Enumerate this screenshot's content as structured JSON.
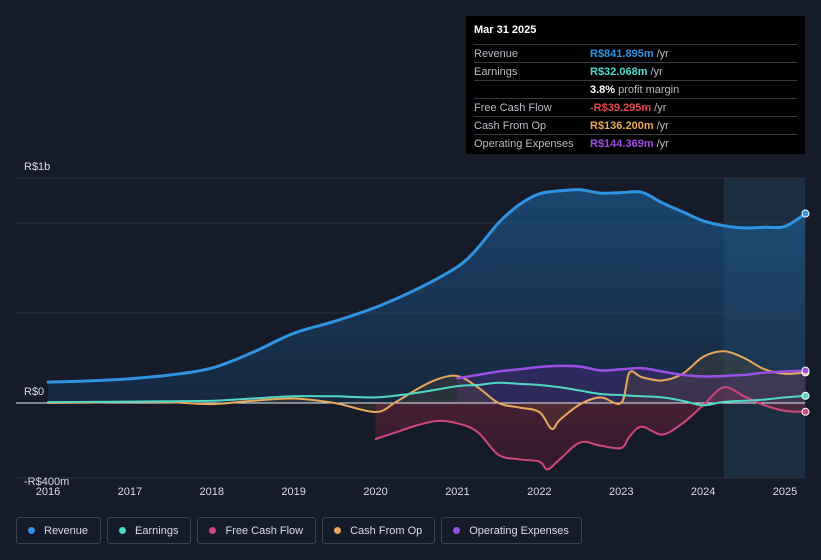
{
  "colors": {
    "revenue": "#2e93e0",
    "earnings": "#4fd8c8",
    "free_cash_flow": "#d0467e",
    "cash_from_op": "#e8a85c",
    "operating_expenses": "#9b4ee6",
    "background": "#151b28"
  },
  "tooltip": {
    "date": "Mar 31 2025",
    "rows": [
      {
        "label": "Revenue",
        "value": "R$841.895m",
        "unit": "/yr",
        "color": "#2e93e0"
      },
      {
        "label": "Earnings",
        "value": "R$32.068m",
        "unit": "/yr",
        "color": "#4fd8c8"
      },
      {
        "label": "",
        "value": "3.8%",
        "unit": "profit margin",
        "color": "#ffffff"
      },
      {
        "label": "Free Cash Flow",
        "value": "-R$39.295m",
        "unit": "/yr",
        "color": "#e0464e"
      },
      {
        "label": "Cash From Op",
        "value": "R$136.200m",
        "unit": "/yr",
        "color": "#e8a85c"
      },
      {
        "label": "Operating Expenses",
        "value": "R$144.369m",
        "unit": "/yr",
        "color": "#9b4ee6"
      }
    ]
  },
  "legend": [
    {
      "label": "Revenue",
      "color": "#2e93e0"
    },
    {
      "label": "Earnings",
      "color": "#4fd8c8"
    },
    {
      "label": "Free Cash Flow",
      "color": "#d0467e"
    },
    {
      "label": "Cash From Op",
      "color": "#e8a85c"
    },
    {
      "label": "Operating Expenses",
      "color": "#9b4ee6"
    }
  ],
  "chart_data": {
    "type": "area",
    "title": "",
    "xlabel": "",
    "ylabel": "",
    "y_unit": "R$ millions",
    "ylim": [
      -400,
      1000
    ],
    "y_tick_labels": [
      {
        "value": 1000,
        "label": "R$1b"
      },
      {
        "value": 0,
        "label": "R$0"
      },
      {
        "value": -400,
        "label": "-R$400m"
      }
    ],
    "xlim": [
      2015.85,
      2025.25
    ],
    "x_ticks": [
      2016,
      2017,
      2018,
      2019,
      2020,
      2021,
      2022,
      2023,
      2024,
      2025
    ],
    "x_tick_labels": [
      "2016",
      "2017",
      "2018",
      "2019",
      "2020",
      "2021",
      "2022",
      "2023",
      "2024",
      "2025"
    ],
    "highlight_start": 2024.25,
    "series": [
      {
        "name": "Revenue",
        "key": "revenue",
        "x": [
          2016.0,
          2016.5,
          2017.0,
          2017.5,
          2018.0,
          2018.5,
          2019.0,
          2019.5,
          2020.0,
          2020.5,
          2021.0,
          2021.25,
          2021.5,
          2021.75,
          2022.0,
          2022.25,
          2022.5,
          2022.75,
          2023.0,
          2023.25,
          2023.5,
          2023.75,
          2024.0,
          2024.25,
          2024.5,
          2024.75,
          2025.0,
          2025.25
        ],
        "y": [
          93,
          98,
          108,
          125,
          155,
          225,
          310,
          363,
          425,
          505,
          605,
          690,
          800,
          880,
          930,
          943,
          948,
          933,
          935,
          937,
          890,
          850,
          810,
          788,
          778,
          781,
          785,
          842
        ]
      },
      {
        "name": "Earnings",
        "key": "earnings",
        "x": [
          2016.0,
          2016.5,
          2017.0,
          2017.5,
          2018.0,
          2018.5,
          2019.0,
          2019.5,
          2020.0,
          2020.5,
          2021.0,
          2021.25,
          2021.5,
          2021.75,
          2022.0,
          2022.25,
          2022.5,
          2022.75,
          2023.0,
          2023.25,
          2023.5,
          2023.75,
          2024.0,
          2024.25,
          2024.5,
          2024.75,
          2025.0,
          2025.25
        ],
        "y": [
          4,
          5,
          6,
          8,
          10,
          20,
          30,
          30,
          25,
          45,
          75,
          80,
          90,
          85,
          80,
          70,
          55,
          40,
          35,
          30,
          25,
          10,
          -10,
          5,
          10,
          15,
          25,
          32
        ]
      },
      {
        "name": "Free Cash Flow",
        "key": "free_cash_flow",
        "x": [
          2020.0,
          2020.25,
          2020.5,
          2020.75,
          2021.0,
          2021.25,
          2021.5,
          2021.75,
          2022.0,
          2022.1,
          2022.25,
          2022.5,
          2022.75,
          2023.0,
          2023.1,
          2023.25,
          2023.5,
          2023.75,
          2024.0,
          2024.25,
          2024.5,
          2024.75,
          2025.0,
          2025.25
        ],
        "y": [
          -160,
          -130,
          -100,
          -80,
          -90,
          -130,
          -230,
          -250,
          -260,
          -295,
          -250,
          -175,
          -190,
          -200,
          -150,
          -105,
          -140,
          -90,
          -10,
          70,
          30,
          -10,
          -35,
          -39
        ]
      },
      {
        "name": "Cash From Op",
        "key": "cash_from_op",
        "x": [
          2016.0,
          2016.5,
          2017.0,
          2017.5,
          2018.0,
          2018.5,
          2019.0,
          2019.5,
          2020.0,
          2020.25,
          2020.5,
          2020.75,
          2021.0,
          2021.25,
          2021.5,
          2021.75,
          2022.0,
          2022.15,
          2022.25,
          2022.5,
          2022.75,
          2023.0,
          2023.1,
          2023.25,
          2023.5,
          2023.75,
          2024.0,
          2024.25,
          2024.5,
          2024.75,
          2025.0,
          2025.25
        ],
        "y": [
          0,
          2,
          5,
          3,
          -5,
          10,
          20,
          0,
          -40,
          5,
          60,
          105,
          120,
          70,
          0,
          -20,
          -40,
          -115,
          -75,
          -5,
          25,
          0,
          135,
          115,
          100,
          130,
          205,
          230,
          200,
          150,
          130,
          136
        ]
      },
      {
        "name": "Operating Expenses",
        "key": "operating_expenses",
        "x": [
          2021.0,
          2021.25,
          2021.5,
          2021.75,
          2022.0,
          2022.25,
          2022.5,
          2022.75,
          2023.0,
          2023.25,
          2023.5,
          2023.75,
          2024.0,
          2024.25,
          2024.5,
          2024.75,
          2025.0,
          2025.25
        ],
        "y": [
          110,
          125,
          140,
          150,
          160,
          165,
          162,
          145,
          150,
          155,
          140,
          125,
          118,
          120,
          125,
          135,
          140,
          144
        ]
      }
    ]
  }
}
